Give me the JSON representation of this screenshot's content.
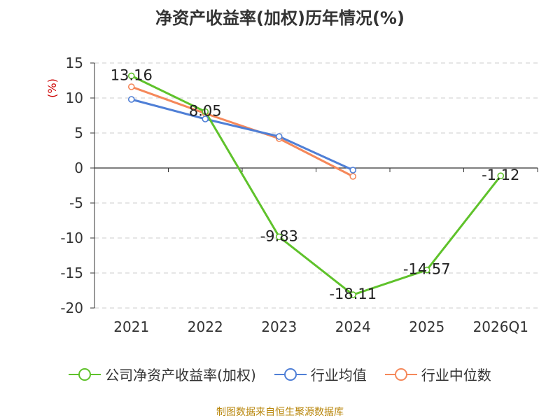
{
  "chart_data": {
    "type": "line",
    "title": "净资产收益率(加权)历年情况(%)",
    "ylabel": "(%)",
    "xlabel": "",
    "categories": [
      "2021",
      "2022",
      "2023",
      "2024",
      "2025",
      "2026Q1"
    ],
    "ylim": [
      -20,
      15
    ],
    "yticks": [
      15,
      10,
      5,
      0,
      -5,
      -10,
      -15,
      -20
    ],
    "grid": true,
    "legend_position": "bottom",
    "series": [
      {
        "name": "公司净资产收益率(加权)",
        "color": "#5fc22b",
        "labeled": true,
        "values": [
          13.16,
          8.05,
          -9.83,
          -18.11,
          -14.57,
          -1.12
        ],
        "labels": [
          "13.16",
          "8.05",
          "-9.83",
          "-18.11",
          "-14.57",
          "-1.12"
        ]
      },
      {
        "name": "行业均值",
        "color": "#4f7fd6",
        "labeled": false,
        "values": [
          9.8,
          7.0,
          4.5,
          -0.3,
          null,
          null
        ]
      },
      {
        "name": "行业中位数",
        "color": "#f5885a",
        "labeled": false,
        "values": [
          11.6,
          7.8,
          4.2,
          -1.2,
          null,
          null
        ]
      }
    ]
  },
  "source": "制图数据来自恒生聚源数据库"
}
